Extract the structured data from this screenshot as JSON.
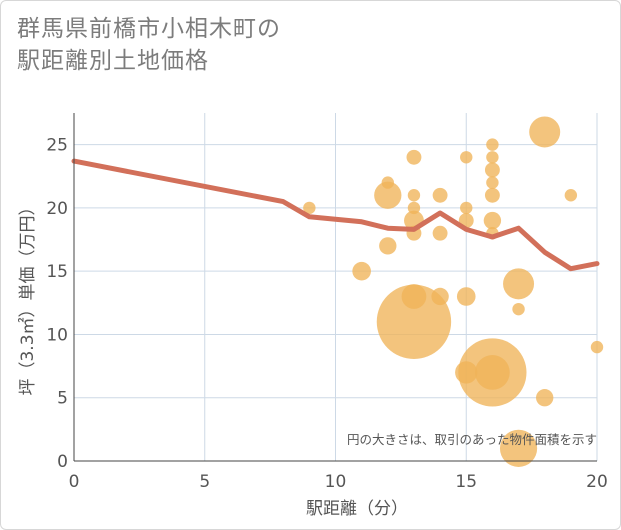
{
  "title_line1": "群馬県前橋市小相木町の",
  "title_line2": "駅距離別土地価格",
  "chart_data": {
    "type": "scatter",
    "title": "群馬県前橋市小相木町の駅距離別土地価格",
    "xlabel": "駅距離（分）",
    "ylabel": "坪（3.3㎡）単価（万円）",
    "xlim": [
      0,
      20
    ],
    "ylim": [
      0,
      27.5
    ],
    "xticks": [
      0,
      5,
      10,
      15,
      20
    ],
    "yticks": [
      0,
      5,
      10,
      15,
      20,
      25
    ],
    "grid": true,
    "note": "円の大きさは、取引のあった物件面積を示す",
    "bubble_color": "#f0b458",
    "line_color": "#d2705a",
    "bubbles": [
      {
        "x": 9,
        "y": 20,
        "r": 1
      },
      {
        "x": 11,
        "y": 15,
        "r": 1.5
      },
      {
        "x": 12,
        "y": 22,
        "r": 1
      },
      {
        "x": 12,
        "y": 21,
        "r": 2.2
      },
      {
        "x": 12,
        "y": 17,
        "r": 1.4
      },
      {
        "x": 13,
        "y": 24,
        "r": 1.2
      },
      {
        "x": 13,
        "y": 21,
        "r": 1
      },
      {
        "x": 13,
        "y": 20,
        "r": 1
      },
      {
        "x": 13,
        "y": 19,
        "r": 1.6
      },
      {
        "x": 13,
        "y": 18,
        "r": 1.2
      },
      {
        "x": 13,
        "y": 13,
        "r": 2
      },
      {
        "x": 13,
        "y": 11,
        "r": 6
      },
      {
        "x": 14,
        "y": 21,
        "r": 1.2
      },
      {
        "x": 14,
        "y": 18,
        "r": 1.2
      },
      {
        "x": 14,
        "y": 13,
        "r": 1.4
      },
      {
        "x": 15,
        "y": 24,
        "r": 1
      },
      {
        "x": 15,
        "y": 20,
        "r": 1
      },
      {
        "x": 15,
        "y": 19,
        "r": 1.2
      },
      {
        "x": 15,
        "y": 13,
        "r": 1.5
      },
      {
        "x": 15,
        "y": 7,
        "r": 1.8
      },
      {
        "x": 16,
        "y": 25,
        "r": 1
      },
      {
        "x": 16,
        "y": 24,
        "r": 1
      },
      {
        "x": 16,
        "y": 23,
        "r": 1.2
      },
      {
        "x": 16,
        "y": 22,
        "r": 1
      },
      {
        "x": 16,
        "y": 21,
        "r": 1.2
      },
      {
        "x": 16,
        "y": 19,
        "r": 1.4
      },
      {
        "x": 16,
        "y": 18,
        "r": 1
      },
      {
        "x": 16,
        "y": 7,
        "r": 5.5
      },
      {
        "x": 16,
        "y": 7,
        "r": 2.8
      },
      {
        "x": 17,
        "y": 14,
        "r": 2.5
      },
      {
        "x": 17,
        "y": 12,
        "r": 1
      },
      {
        "x": 17,
        "y": 1,
        "r": 3
      },
      {
        "x": 18,
        "y": 26,
        "r": 2.5
      },
      {
        "x": 18,
        "y": 5,
        "r": 1.4
      },
      {
        "x": 19,
        "y": 21,
        "r": 1
      },
      {
        "x": 20,
        "y": 9,
        "r": 1
      }
    ],
    "trend": {
      "x": [
        0,
        8,
        9,
        10,
        11,
        12,
        13,
        14,
        15,
        16,
        17,
        18,
        19,
        20
      ],
      "y": [
        23.7,
        20.5,
        19.3,
        19.1,
        18.9,
        18.4,
        18.3,
        19.6,
        18.3,
        17.7,
        18.4,
        16.5,
        15.2,
        15.6
      ]
    }
  }
}
